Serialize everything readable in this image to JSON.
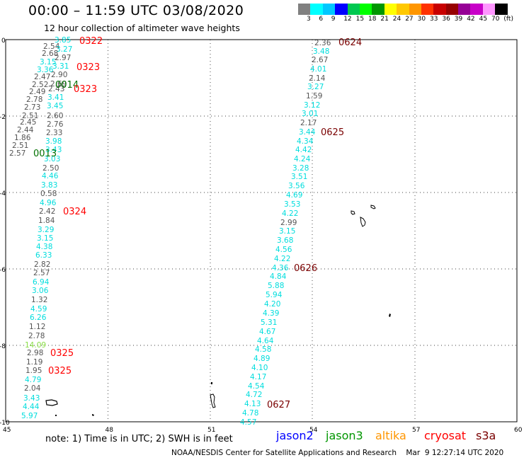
{
  "header": {
    "title": "00:00 – 11:59 UTC 03/08/2020",
    "subtitle": "12 hour collection of altimeter wave heights"
  },
  "scale": {
    "colors": [
      "#808080",
      "#00ffff",
      "#00c8ff",
      "#0000ff",
      "#00c850",
      "#00ff00",
      "#009600",
      "#ffff00",
      "#ffc800",
      "#ff9600",
      "#ff3200",
      "#c80000",
      "#960000",
      "#960096",
      "#c800c8",
      "#ff96ff",
      "#000000"
    ],
    "labels": [
      "3",
      "6",
      "9",
      "12",
      "15",
      "18",
      "21",
      "24",
      "27",
      "30",
      "33",
      "36",
      "39",
      "42",
      "45",
      "70",
      "(ft)"
    ]
  },
  "axes": {
    "x_ticks": [
      "45",
      "48",
      "51",
      "54",
      "57",
      "60"
    ],
    "y_ticks": [
      "0",
      "-2",
      "-4",
      "-6",
      "-8",
      "-10"
    ]
  },
  "colors": {
    "gray": "#555555",
    "cyan": "#00dddd",
    "green": "#88dd44",
    "red": "#ff0000",
    "maroon": "#7a0000",
    "dkgreen": "#007000"
  },
  "track_left": [
    [
      "3.85",
      "cyan",
      77,
      56
    ],
    [
      "2.54",
      "gray",
      61,
      65
    ],
    [
      "3.27",
      "cyan",
      79,
      69
    ],
    [
      "2.68",
      "gray",
      59,
      75
    ],
    [
      "2.97",
      "gray",
      77,
      81
    ],
    [
      "3.15",
      "cyan",
      56,
      87
    ],
    [
      "3.31",
      "cyan",
      74,
      93
    ],
    [
      "3.36",
      "cyan",
      52,
      98
    ],
    [
      "2.90",
      "gray",
      72,
      105
    ],
    [
      "2.47",
      "gray",
      48,
      108
    ],
    [
      "2.52",
      "gray",
      45,
      119
    ],
    [
      "2.69",
      "gray",
      71,
      118
    ],
    [
      "2.43",
      "gray",
      68,
      125
    ],
    [
      "2.49",
      "gray",
      41,
      129
    ],
    [
      "3.41",
      "cyan",
      67,
      137
    ],
    [
      "2.78",
      "gray",
      37,
      140
    ],
    [
      "2.73",
      "gray",
      34,
      151
    ],
    [
      "3.45",
      "cyan",
      66,
      149
    ],
    [
      "2.51",
      "gray",
      31,
      163
    ],
    [
      "2.60",
      "gray",
      66,
      163
    ],
    [
      "2.45",
      "gray",
      28,
      172
    ],
    [
      "2.76",
      "gray",
      66,
      175
    ],
    [
      "2.44",
      "gray",
      24,
      183
    ],
    [
      "2.33",
      "gray",
      65,
      187
    ],
    [
      "1.86",
      "gray",
      20,
      194
    ],
    [
      "3.98",
      "cyan",
      64,
      199
    ],
    [
      "2.51",
      "gray",
      17,
      205
    ],
    [
      "3.43",
      "cyan",
      64,
      211
    ],
    [
      "2.57",
      "gray",
      13,
      216
    ],
    [
      "3.03",
      "cyan",
      62,
      224
    ],
    [
      "2.50",
      "gray",
      60,
      237
    ],
    [
      "4.46",
      "cyan",
      59,
      248
    ],
    [
      "3.83",
      "cyan",
      58,
      261
    ],
    [
      "0.58",
      "gray",
      57,
      273
    ],
    [
      "4.96",
      "cyan",
      56,
      286
    ],
    [
      "2.42",
      "gray",
      55,
      298
    ],
    [
      "1.84",
      "gray",
      54,
      311
    ],
    [
      "3.29",
      "cyan",
      53,
      324
    ],
    [
      "3.15",
      "cyan",
      52,
      336
    ],
    [
      "4.38",
      "cyan",
      51,
      348
    ],
    [
      "6.33",
      "cyan",
      50,
      360
    ],
    [
      "2.82",
      "gray",
      48,
      373
    ],
    [
      "2.57",
      "gray",
      47,
      385
    ],
    [
      "6.94",
      "cyan",
      46,
      398
    ],
    [
      "3.06",
      "cyan",
      45,
      410
    ],
    [
      "1.32",
      "gray",
      44,
      423
    ],
    [
      "4.59",
      "cyan",
      43,
      436
    ],
    [
      "6.26",
      "cyan",
      42,
      448
    ],
    [
      "1.12",
      "gray",
      41,
      461
    ],
    [
      "2.78",
      "gray",
      40,
      474
    ],
    [
      "14.09",
      "green",
      35,
      487
    ],
    [
      "2.98",
      "gray",
      38,
      498
    ],
    [
      "1.19",
      "gray",
      37,
      511
    ],
    [
      "1.95",
      "gray",
      36,
      523
    ],
    [
      "4.79",
      "cyan",
      35,
      536
    ],
    [
      "2.04",
      "gray",
      34,
      548
    ],
    [
      "3.43",
      "cyan",
      33,
      562
    ],
    [
      "4.44",
      "cyan",
      32,
      574
    ],
    [
      "5.97",
      "cyan",
      30,
      587
    ]
  ],
  "track_right": [
    [
      "2.36",
      "gray",
      444,
      60
    ],
    [
      "3.48",
      "cyan",
      442,
      72
    ],
    [
      "2.67",
      "gray",
      440,
      84
    ],
    [
      "4.01",
      "cyan",
      438,
      97
    ],
    [
      "2.14",
      "gray",
      436,
      110
    ],
    [
      "3.27",
      "cyan",
      434,
      122
    ],
    [
      "1.59",
      "gray",
      432,
      135
    ],
    [
      "3.12",
      "cyan",
      429,
      148
    ],
    [
      "3.01",
      "cyan",
      426,
      160
    ],
    [
      "2.17",
      "gray",
      424,
      173
    ],
    [
      "3.44",
      "cyan",
      422,
      186
    ],
    [
      "4.34",
      "cyan",
      419,
      199
    ],
    [
      "4.42",
      "cyan",
      417,
      211
    ],
    [
      "4.24",
      "cyan",
      415,
      224
    ],
    [
      "3.28",
      "cyan",
      413,
      237
    ],
    [
      "3.51",
      "cyan",
      411,
      249
    ],
    [
      "3.56",
      "cyan",
      407,
      262
    ],
    [
      "4.69",
      "cyan",
      404,
      275
    ],
    [
      "3.53",
      "cyan",
      401,
      288
    ],
    [
      "4.22",
      "cyan",
      398,
      301
    ],
    [
      "2.99",
      "gray",
      396,
      314
    ],
    [
      "3.15",
      "cyan",
      394,
      326
    ],
    [
      "3.68",
      "cyan",
      391,
      339
    ],
    [
      "4.56",
      "cyan",
      389,
      352
    ],
    [
      "4.22",
      "cyan",
      387,
      365
    ],
    [
      "4.36",
      "cyan",
      384,
      378
    ],
    [
      "4.84",
      "cyan",
      381,
      390
    ],
    [
      "5.88",
      "cyan",
      378,
      403
    ],
    [
      "5.94",
      "cyan",
      375,
      416
    ],
    [
      "4.20",
      "cyan",
      373,
      429
    ],
    [
      "4.39",
      "cyan",
      371,
      442
    ],
    [
      "5.31",
      "cyan",
      368,
      455
    ],
    [
      "4.67",
      "cyan",
      366,
      468
    ],
    [
      "4.64",
      "cyan",
      363,
      481
    ],
    [
      "4.58",
      "cyan",
      360,
      493
    ],
    [
      "4.89",
      "cyan",
      358,
      506
    ],
    [
      "4.10",
      "cyan",
      355,
      519
    ],
    [
      "4.17",
      "cyan",
      353,
      532
    ],
    [
      "4.54",
      "cyan",
      350,
      545
    ],
    [
      "4.72",
      "cyan",
      347,
      557
    ],
    [
      "4.13",
      "cyan",
      345,
      570
    ],
    [
      "4.78",
      "cyan",
      342,
      583
    ],
    [
      "4.57",
      "cyan",
      339,
      596
    ]
  ],
  "time_labels": [
    [
      "0322",
      "red",
      112,
      57
    ],
    [
      "0323",
      "red",
      108,
      94
    ],
    [
      "0014",
      "dkgreen",
      78,
      119
    ],
    [
      "0323",
      "red",
      104,
      125
    ],
    [
      "0013",
      "dkgreen",
      47,
      216
    ],
    [
      "0324",
      "red",
      89,
      298
    ],
    [
      "0325",
      "red",
      71,
      498
    ],
    [
      "0325",
      "red",
      68,
      523
    ],
    [
      "0624",
      "maroon",
      478,
      59
    ],
    [
      "0625",
      "maroon",
      453,
      186
    ],
    [
      "0626",
      "maroon",
      415,
      378
    ],
    [
      "0627",
      "maroon",
      377,
      571
    ]
  ],
  "note": "note:  1) Time is in UTC;  2) SWH is in feet",
  "satellites": [
    {
      "name": "jason2",
      "color": "#0000ff"
    },
    {
      "name": "jason3",
      "color": "#009600"
    },
    {
      "name": "altika",
      "color": "#ff9600"
    },
    {
      "name": "cryosat",
      "color": "#ff0000"
    },
    {
      "name": "s3a",
      "color": "#7a0000"
    }
  ],
  "credit": "NOAA/NESDIS Center for Satellite Applications and Research    Mar  9 12:27:14 UTC 2020"
}
